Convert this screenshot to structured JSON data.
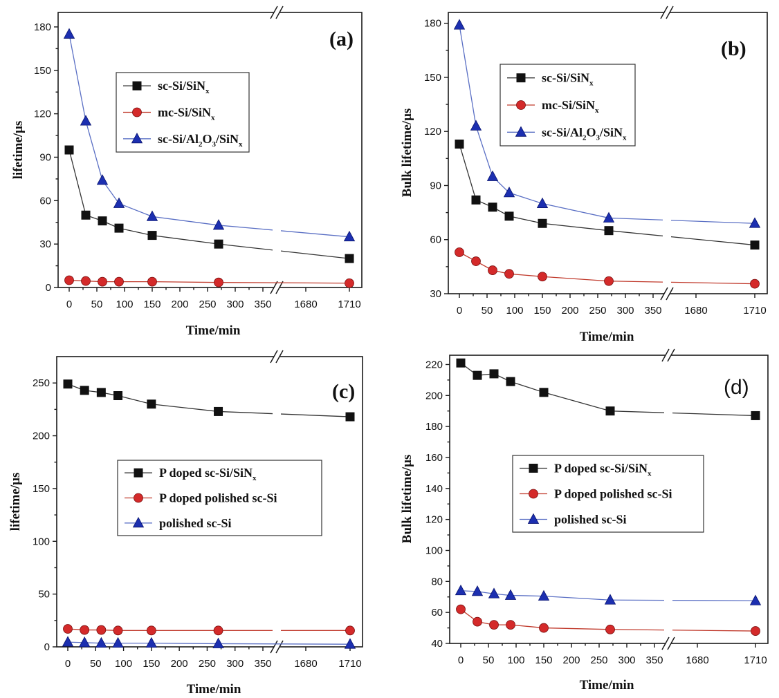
{
  "colors": {
    "black": "#111111",
    "red": "#d42a2a",
    "blue": "#1c2fb0",
    "line_black": "#333333",
    "line_red": "#c0392b",
    "line_blue": "#5a6fc4"
  },
  "chart_data": [
    {
      "type": "line",
      "panel_label": "(a)",
      "xlabel": "Time/min",
      "ylabel": "lifetime/μs",
      "x": [
        "0",
        "30",
        "60",
        "90",
        "150",
        "270",
        "1710"
      ],
      "x_ticks": [
        "0",
        "50",
        "100",
        "150",
        "200",
        "250",
        "300",
        "350",
        "1680",
        "1710"
      ],
      "y_ticks": [
        "0",
        "30",
        "60",
        "90",
        "120",
        "150",
        "180"
      ],
      "ylim": [
        0,
        190
      ],
      "legend": [
        {
          "label": "sc-Si/SiN",
          "sub": "x",
          "rest": ""
        },
        {
          "label": "mc-Si/SiN",
          "sub": "x",
          "rest": ""
        },
        {
          "label": "sc-Si/Al",
          "sub": "2",
          "rest": "O",
          "sub2": "3",
          "rest2": "/SiN",
          "sub3": "x"
        }
      ],
      "series": [
        {
          "name": "sc-Si/SiNx",
          "marker": "square",
          "values": [
            95,
            50,
            46,
            41,
            36,
            30,
            20
          ]
        },
        {
          "name": "mc-Si/SiNx",
          "marker": "circle",
          "values": [
            5,
            4.5,
            4,
            4,
            4,
            3.5,
            3
          ]
        },
        {
          "name": "sc-Si/Al2O3/SiNx",
          "marker": "triangle",
          "values": [
            175,
            115,
            74,
            58,
            49,
            43,
            35
          ]
        }
      ]
    },
    {
      "type": "line",
      "panel_label": "(b)",
      "xlabel": "Time/min",
      "ylabel": "Bulk lifetime/μs",
      "x": [
        "0",
        "30",
        "60",
        "90",
        "150",
        "270",
        "1710"
      ],
      "x_ticks": [
        "0",
        "50",
        "100",
        "150",
        "200",
        "250",
        "300",
        "350",
        "1680",
        "1710"
      ],
      "y_ticks": [
        "30",
        "60",
        "90",
        "120",
        "150",
        "180"
      ],
      "ylim": [
        30,
        186
      ],
      "legend": [
        {
          "label": "sc-Si/SiN",
          "sub": "x",
          "rest": ""
        },
        {
          "label": "mc-Si/SiN",
          "sub": "x",
          "rest": ""
        },
        {
          "label": "sc-Si/Al",
          "sub": "2",
          "rest": "O",
          "sub2": "3",
          "rest2": "/SiN",
          "sub3": "x"
        }
      ],
      "series": [
        {
          "name": "sc-Si/SiNx",
          "marker": "square",
          "values": [
            113,
            82,
            78,
            73,
            69,
            65,
            57
          ]
        },
        {
          "name": "mc-Si/SiNx",
          "marker": "circle",
          "values": [
            53,
            48,
            43,
            41,
            39.5,
            37,
            35.5
          ]
        },
        {
          "name": "sc-Si/Al2O3/SiNx",
          "marker": "triangle",
          "values": [
            179,
            123,
            95,
            86,
            80,
            72,
            69
          ]
        }
      ]
    },
    {
      "type": "line",
      "panel_label": "(c)",
      "xlabel": "Time/min",
      "ylabel": "lifetime/μs",
      "x": [
        "0",
        "30",
        "60",
        "90",
        "150",
        "270",
        "1710"
      ],
      "x_ticks": [
        "0",
        "50",
        "100",
        "150",
        "200",
        "250",
        "300",
        "350",
        "1680",
        "1710"
      ],
      "y_ticks": [
        "0",
        "50",
        "100",
        "150",
        "200",
        "250"
      ],
      "ylim": [
        0,
        275
      ],
      "legend": [
        {
          "label": "P doped sc-Si/SiN",
          "sub": "x",
          "rest": ""
        },
        {
          "label": "P doped polished sc-Si",
          "sub": "",
          "rest": ""
        },
        {
          "label": "polished sc-Si",
          "sub": "",
          "rest": ""
        }
      ],
      "series": [
        {
          "name": "P doped sc-Si/SiNx",
          "marker": "square",
          "values": [
            249,
            243,
            241,
            238,
            230,
            223,
            218
          ]
        },
        {
          "name": "P doped polished sc-Si",
          "marker": "circle",
          "values": [
            17,
            16,
            16,
            15.5,
            15.5,
            15.5,
            15.5
          ]
        },
        {
          "name": "polished sc-Si",
          "marker": "triangle",
          "values": [
            4.5,
            4,
            3.5,
            3.5,
            3.5,
            3,
            2.5
          ]
        }
      ]
    },
    {
      "type": "line",
      "panel_label": "(d)",
      "xlabel": "Time/min",
      "ylabel": "Bulk lifetime/μs",
      "x": [
        "0",
        "30",
        "60",
        "90",
        "150",
        "270",
        "1710"
      ],
      "x_ticks": [
        "0",
        "50",
        "100",
        "150",
        "200",
        "250",
        "300",
        "350",
        "1680",
        "1710"
      ],
      "y_ticks": [
        "40",
        "60",
        "80",
        "100",
        "120",
        "140",
        "160",
        "180",
        "200",
        "220"
      ],
      "ylim": [
        40,
        226
      ],
      "legend": [
        {
          "label": "P doped sc-Si/SiN",
          "sub": "x",
          "rest": ""
        },
        {
          "label": "P doped polished sc-Si",
          "sub": "",
          "rest": ""
        },
        {
          "label": "polished sc-Si",
          "sub": "",
          "rest": ""
        }
      ],
      "series": [
        {
          "name": "P doped sc-Si/SiNx",
          "marker": "square",
          "values": [
            221,
            213,
            214,
            209,
            202,
            190,
            187
          ]
        },
        {
          "name": "P doped polished sc-Si",
          "marker": "circle",
          "values": [
            62,
            54,
            52,
            52,
            50,
            49,
            48
          ]
        },
        {
          "name": "polished sc-Si",
          "marker": "triangle",
          "values": [
            74,
            73.5,
            72,
            71,
            70.5,
            68,
            67.5
          ]
        }
      ]
    }
  ]
}
